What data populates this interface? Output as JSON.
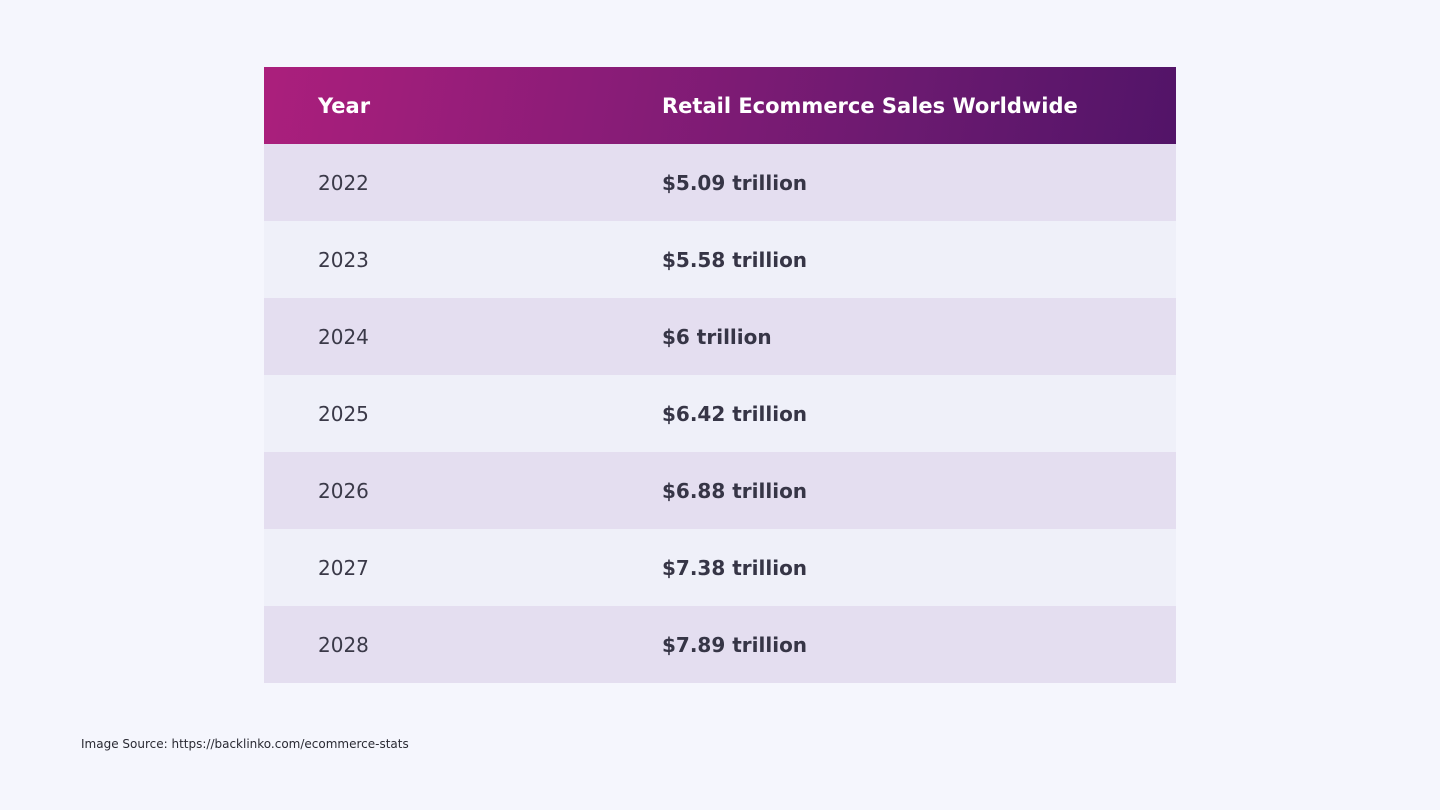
{
  "chart_data": {
    "type": "table",
    "columns": [
      "Year",
      "Retail Ecommerce Sales Worldwide"
    ],
    "rows": [
      {
        "year": "2022",
        "sales": "$5.09 trillion"
      },
      {
        "year": "2023",
        "sales": "$5.58 trillion"
      },
      {
        "year": "2024",
        "sales": "$6 trillion"
      },
      {
        "year": "2025",
        "sales": "$6.42 trillion"
      },
      {
        "year": "2026",
        "sales": "$6.88 trillion"
      },
      {
        "year": "2027",
        "sales": "$7.38 trillion"
      },
      {
        "year": "2028",
        "sales": "$7.89 trillion"
      }
    ]
  },
  "source": "Image Source: https://backlinko.com/ecommerce-stats",
  "colors": {
    "header_start": "#ab1f7c",
    "header_end": "#521468",
    "row_odd": "#e4def0",
    "row_even": "#eff0f9",
    "background": "#f5f6fd"
  }
}
